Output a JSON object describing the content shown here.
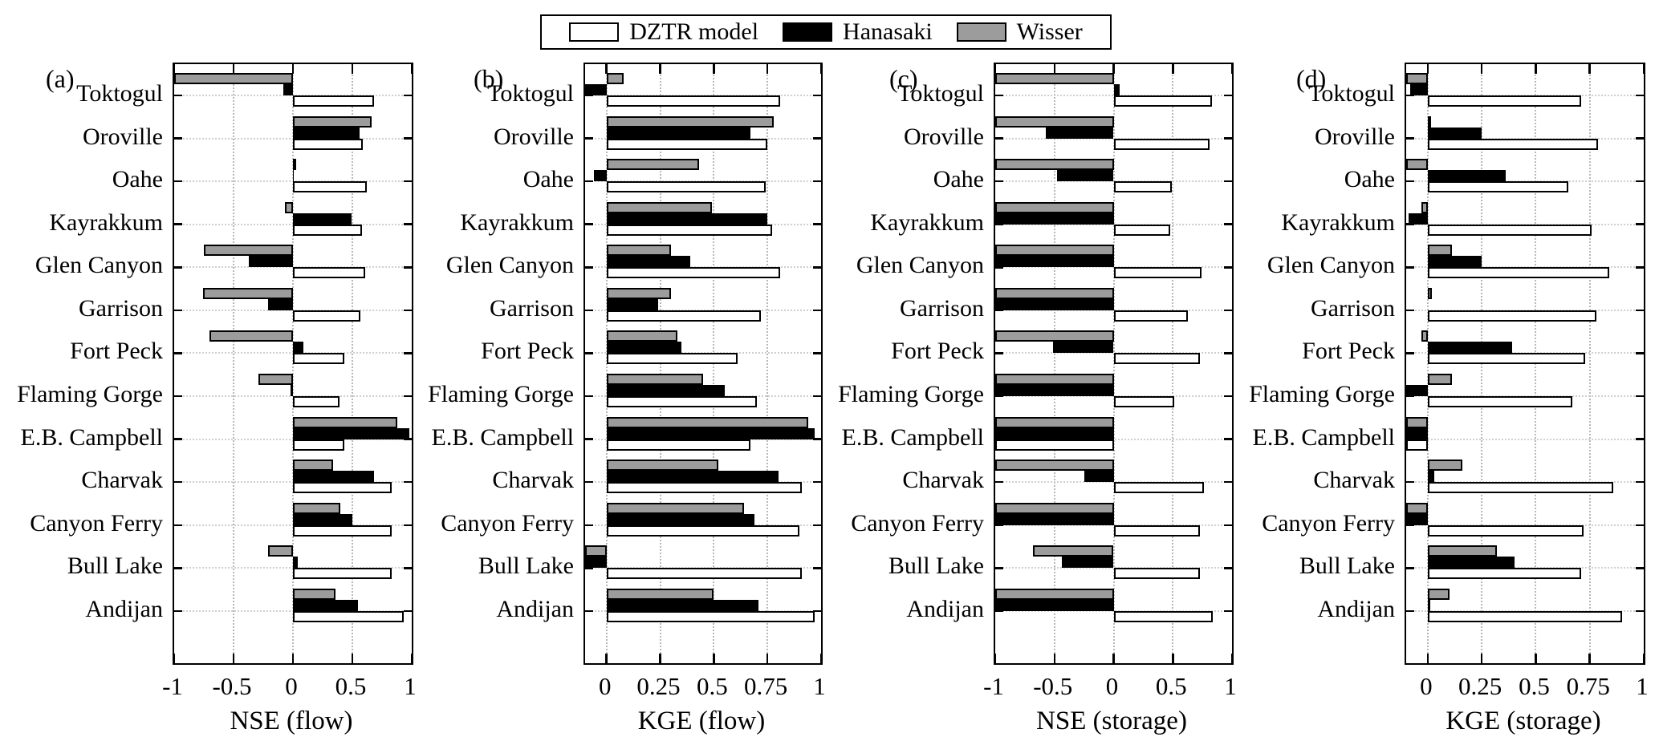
{
  "figure": {
    "background": "#ffffff"
  },
  "legend": {
    "items": [
      {
        "label": "DZTR model",
        "color": "#ffffff"
      },
      {
        "label": "Hanasaki",
        "color": "#000000"
      },
      {
        "label": "Wisser",
        "color": "#9c9c9c"
      }
    ]
  },
  "chart_data": [
    {
      "panel_label": "(a)",
      "type": "bar",
      "orientation": "horizontal",
      "xlabel": "NSE (flow)",
      "xlim": [
        -1,
        1
      ],
      "xticks": [
        -1,
        -0.5,
        0,
        0.5,
        1
      ],
      "xtick_labels": [
        "-1",
        "-0.5",
        "0",
        "0.5",
        "1"
      ],
      "grid": true,
      "series_order_top_to_bottom": [
        "Wisser",
        "Hanasaki",
        "DZTR model"
      ],
      "categories": [
        "Toktogul",
        "Oroville",
        "Oahe",
        "Kayrakkum",
        "Glen Canyon",
        "Garrison",
        "Fort Peck",
        "Flaming Gorge",
        "E.B. Campbell",
        "Charvak",
        "Canyon Ferry",
        "Bull Lake",
        "Andijan"
      ],
      "series": [
        {
          "name": "DZTR model",
          "values": [
            0.68,
            0.59,
            0.62,
            0.58,
            0.61,
            0.57,
            0.43,
            0.39,
            0.43,
            0.83,
            0.83,
            0.83,
            0.93
          ]
        },
        {
          "name": "Hanasaki",
          "values": [
            -0.08,
            0.56,
            0.01,
            0.49,
            -0.37,
            -0.21,
            0.09,
            -0.02,
            0.98,
            0.68,
            0.5,
            0.04,
            0.55
          ]
        },
        {
          "name": "Wisser",
          "values": [
            -1,
            0.66,
            0.01,
            -0.07,
            -0.75,
            -0.76,
            -0.7,
            -0.29,
            0.88,
            0.34,
            0.4,
            -0.21,
            0.36
          ]
        }
      ]
    },
    {
      "panel_label": "(b)",
      "type": "bar",
      "orientation": "horizontal",
      "xlabel": "KGE (flow)",
      "xlim": [
        -0.1,
        1
      ],
      "xticks": [
        0,
        0.25,
        0.5,
        0.75,
        1
      ],
      "xtick_labels": [
        "0",
        "0.25",
        "0.5",
        "0.75",
        "1"
      ],
      "grid": true,
      "series_order_top_to_bottom": [
        "Wisser",
        "Hanasaki",
        "DZTR model"
      ],
      "categories": [
        "Toktogul",
        "Oroville",
        "Oahe",
        "Kayrakkum",
        "Glen Canyon",
        "Garrison",
        "Fort Peck",
        "Flaming Gorge",
        "E.B. Campbell",
        "Charvak",
        "Canyon Ferry",
        "Bull Lake",
        "Andijan"
      ],
      "series": [
        {
          "name": "DZTR model",
          "values": [
            0.81,
            0.75,
            0.74,
            0.77,
            0.81,
            0.72,
            0.61,
            0.7,
            0.67,
            0.91,
            0.9,
            0.91,
            0.97
          ]
        },
        {
          "name": "Hanasaki",
          "values": [
            -0.1,
            0.67,
            -0.06,
            0.75,
            0.39,
            0.24,
            0.35,
            0.55,
            0.97,
            0.8,
            0.69,
            -0.1,
            0.71
          ]
        },
        {
          "name": "Wisser",
          "values": [
            0.08,
            0.78,
            0.43,
            0.49,
            0.3,
            0.3,
            0.33,
            0.45,
            0.94,
            0.52,
            0.64,
            -0.1,
            0.5
          ]
        }
      ]
    },
    {
      "panel_label": "(c)",
      "type": "bar",
      "orientation": "horizontal",
      "xlabel": "NSE (storage)",
      "xlim": [
        -1,
        1
      ],
      "xticks": [
        -1,
        -0.5,
        0,
        0.5,
        1
      ],
      "xtick_labels": [
        "-1",
        "-0.5",
        "0",
        "0.5",
        "1"
      ],
      "grid": true,
      "series_order_top_to_bottom": [
        "Wisser",
        "Hanasaki",
        "DZTR model"
      ],
      "categories": [
        "Toktogul",
        "Oroville",
        "Oahe",
        "Kayrakkum",
        "Glen Canyon",
        "Garrison",
        "Fort Peck",
        "Flaming Gorge",
        "E.B. Campbell",
        "Charvak",
        "Canyon Ferry",
        "Bull Lake",
        "Andijan"
      ],
      "series": [
        {
          "name": "DZTR model",
          "values": [
            0.83,
            0.81,
            0.49,
            0.48,
            0.74,
            0.63,
            0.73,
            0.51,
            -1,
            0.76,
            0.73,
            0.73,
            0.84
          ]
        },
        {
          "name": "Hanasaki",
          "values": [
            0.05,
            -0.57,
            -0.48,
            -1,
            -1,
            -1,
            -0.51,
            -1,
            -1,
            -0.25,
            -1,
            -0.44,
            -1
          ]
        },
        {
          "name": "Wisser",
          "values": [
            -1,
            -1,
            -1,
            -1,
            -1,
            -1,
            -1,
            -1,
            -1,
            -1,
            -1,
            -0.68,
            -1
          ]
        }
      ]
    },
    {
      "panel_label": "(d)",
      "type": "bar",
      "orientation": "horizontal",
      "xlabel": "KGE (storage)",
      "xlim": [
        -0.1,
        1
      ],
      "xticks": [
        0,
        0.25,
        0.5,
        0.75,
        1
      ],
      "xtick_labels": [
        "0",
        "0.25",
        "0.5",
        "0.75",
        "1"
      ],
      "grid": true,
      "series_order_top_to_bottom": [
        "Wisser",
        "Hanasaki",
        "DZTR model"
      ],
      "categories": [
        "Toktogul",
        "Oroville",
        "Oahe",
        "Kayrakkum",
        "Glen Canyon",
        "Garrison",
        "Fort Peck",
        "Flaming Gorge",
        "E.B. Campbell",
        "Charvak",
        "Canyon Ferry",
        "Bull Lake",
        "Andijan"
      ],
      "series": [
        {
          "name": "DZTR model",
          "values": [
            0.71,
            0.79,
            0.65,
            0.76,
            0.84,
            0.78,
            0.73,
            0.67,
            -0.1,
            0.86,
            0.72,
            0.71,
            0.9
          ]
        },
        {
          "name": "Hanasaki",
          "values": [
            -0.08,
            0.25,
            0.36,
            -0.09,
            0.25,
            0,
            0.39,
            -0.1,
            -0.1,
            0.03,
            -0.1,
            0.4,
            0.01
          ]
        },
        {
          "name": "Wisser",
          "values": [
            -0.1,
            0.01,
            -0.1,
            -0.03,
            0.11,
            0.02,
            -0.03,
            0.11,
            -0.1,
            0.16,
            -0.1,
            0.32,
            0.1
          ]
        }
      ]
    }
  ]
}
